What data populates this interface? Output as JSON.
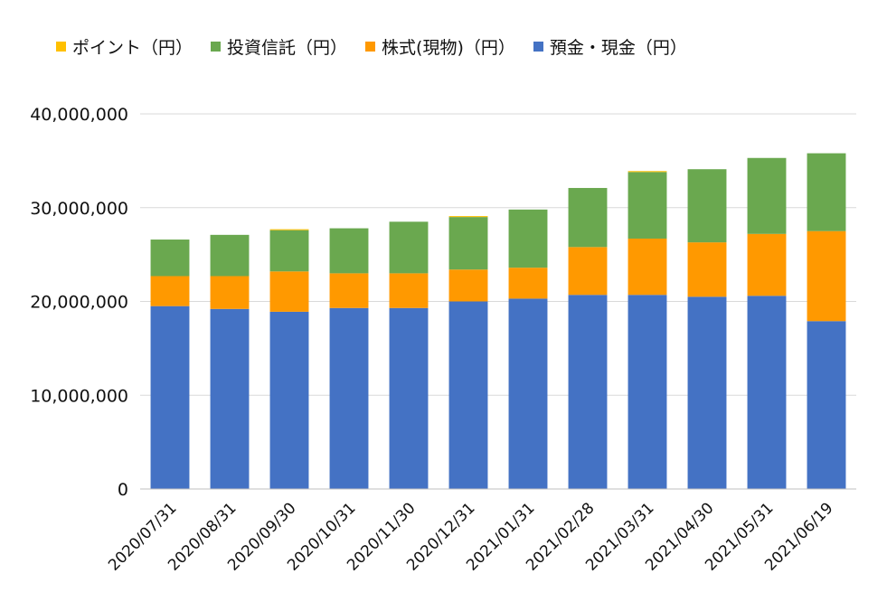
{
  "chart_data": {
    "type": "bar",
    "stacked": true,
    "categories": [
      "2020/07/31",
      "2020/08/31",
      "2020/09/30",
      "2020/10/31",
      "2020/11/30",
      "2020/12/31",
      "2021/01/31",
      "2021/02/28",
      "2021/03/31",
      "2021/04/30",
      "2021/05/31",
      "2021/06/19"
    ],
    "series": [
      {
        "name": "預金・現金（円）",
        "color": "#4472c4",
        "values": [
          19500000,
          19200000,
          18900000,
          19300000,
          19300000,
          20000000,
          20300000,
          20700000,
          20700000,
          20500000,
          20600000,
          17900000
        ]
      },
      {
        "name": "株式(現物)（円）",
        "color": "#ff9900",
        "values": [
          3200000,
          3500000,
          4300000,
          3700000,
          3700000,
          3400000,
          3300000,
          5100000,
          6000000,
          5800000,
          6600000,
          9600000
        ]
      },
      {
        "name": "投資信託（円）",
        "color": "#6aa84f",
        "values": [
          3900000,
          4400000,
          4400000,
          4800000,
          5500000,
          5600000,
          6200000,
          6300000,
          7100000,
          7800000,
          8100000,
          8300000
        ]
      },
      {
        "name": "ポイント（円）",
        "color": "#ffc000",
        "values": [
          0,
          0,
          100000,
          0,
          0,
          100000,
          0,
          0,
          100000,
          0,
          0,
          0
        ]
      }
    ],
    "legend_order": [
      3,
      2,
      1,
      0
    ],
    "y_ticks": [
      "0",
      "10,000,000",
      "20,000,000",
      "30,000,000",
      "40,000,000"
    ],
    "ylim": [
      0,
      40000000
    ],
    "grid": true,
    "legend_position": "top"
  }
}
